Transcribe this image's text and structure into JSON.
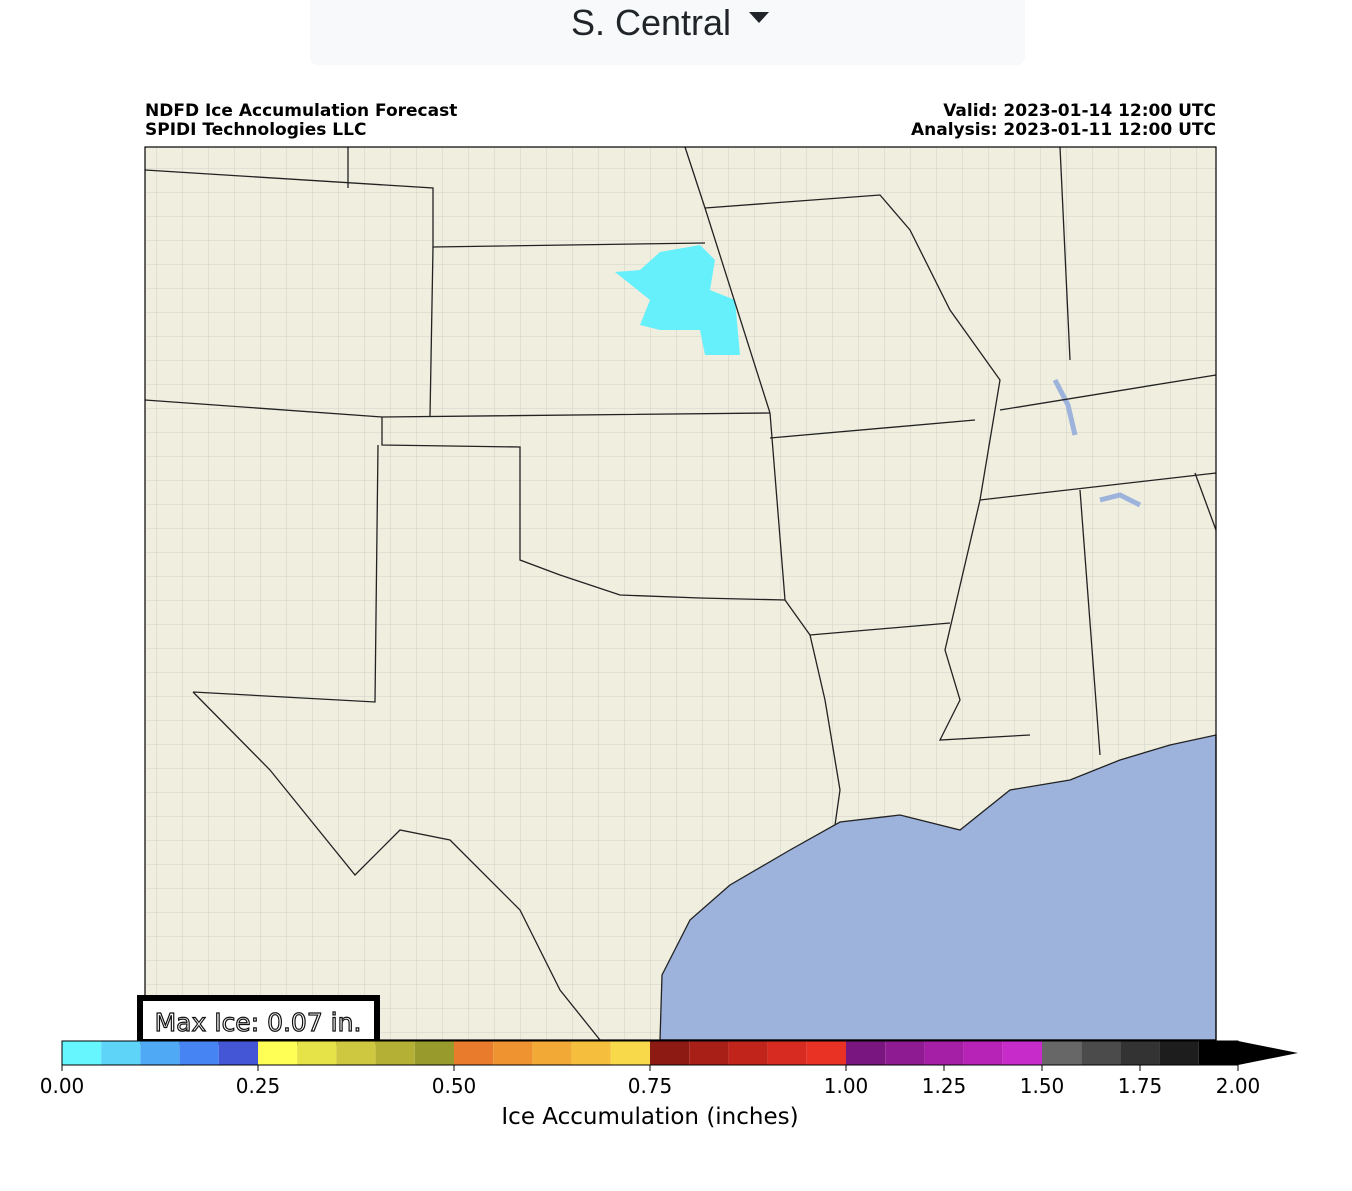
{
  "header": {
    "dropdown": "S. Central"
  },
  "map": {
    "title": "NDFD Ice Accumulation Forecast",
    "subtitle": "SPIDI Technologies LLC",
    "valid": "Valid: 2023-01-14 12:00 UTC",
    "analysis": "Analysis: 2023-01-11 12:00 UTC",
    "max_ice": "Max Ice: 0.07 in."
  },
  "colorbar": {
    "label": "Ice Accumulation (inches)",
    "boundaries": [
      0,
      0.05,
      0.1,
      0.15,
      0.2,
      0.25,
      0.3,
      0.35,
      0.4,
      0.45,
      0.5,
      0.55,
      0.6,
      0.65,
      0.7,
      0.75,
      0.8,
      0.85,
      0.9,
      0.95,
      1.0,
      1.1,
      1.2,
      1.3,
      1.4,
      1.5,
      1.6,
      1.7,
      1.8,
      1.9,
      2.0
    ],
    "colors": [
      "#66f6fd",
      "#5dd4f8",
      "#4fa9f5",
      "#4584f2",
      "#4456d6",
      "#ffff55",
      "#e6e348",
      "#cdc840",
      "#b3b035",
      "#989a2c",
      "#e97c2c",
      "#ef9230",
      "#f3a936",
      "#f5be3c",
      "#f8d94a",
      "#8d1a13",
      "#a81f17",
      "#c0241b",
      "#d72b21",
      "#e93224",
      "#7a1680",
      "#8f1b93",
      "#a51ea6",
      "#b823b7",
      "#c72ccb",
      "#676767",
      "#4b4b4b",
      "#333333",
      "#1d1d1d",
      "#000000"
    ],
    "ticks": [
      {
        "value": 0,
        "label": "0.00"
      },
      {
        "value": 0.25,
        "label": "0.25"
      },
      {
        "value": 0.5,
        "label": "0.50"
      },
      {
        "value": 0.75,
        "label": "0.75"
      },
      {
        "value": 1.0,
        "label": "1.00"
      },
      {
        "value": 1.25,
        "label": "1.25"
      },
      {
        "value": 1.5,
        "label": "1.50"
      },
      {
        "value": 1.75,
        "label": "1.75"
      },
      {
        "value": 2.0,
        "label": "2.00"
      }
    ]
  }
}
